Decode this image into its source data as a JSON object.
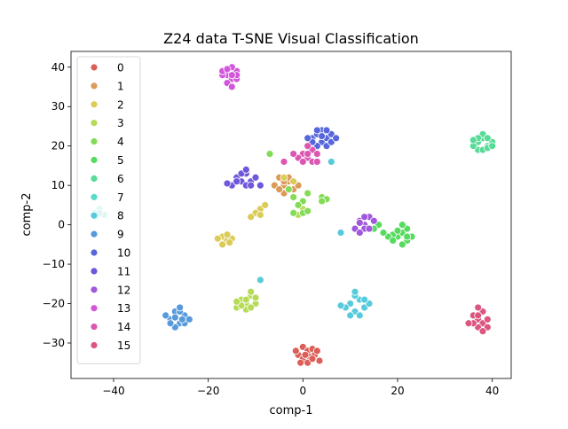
{
  "chart_data": {
    "type": "scatter",
    "title": "Z24 data T-SNE Visual Classification",
    "xlabel": "comp-1",
    "ylabel": "comp-2",
    "xlim": [
      -49,
      44
    ],
    "ylim": [
      -39,
      44
    ],
    "xticks": [
      -40,
      -20,
      0,
      20,
      40
    ],
    "yticks": [
      -30,
      -20,
      -10,
      0,
      10,
      20,
      30,
      40
    ],
    "grid": false,
    "legend_position": "upper-left",
    "series": [
      {
        "name": "0",
        "color": "#db5f57",
        "points": [
          [
            0,
            -31
          ],
          [
            1,
            -32
          ],
          [
            2,
            -31.5
          ],
          [
            -1,
            -33
          ],
          [
            0,
            -34
          ],
          [
            1.5,
            -33.5
          ],
          [
            -1.5,
            -32
          ],
          [
            2.5,
            -33
          ],
          [
            3,
            -32
          ],
          [
            -0.5,
            -35
          ],
          [
            1,
            -35
          ],
          [
            3.5,
            -34.5
          ],
          [
            0.5,
            -33
          ],
          [
            2,
            -34
          ]
        ]
      },
      {
        "name": "1",
        "color": "#db9a57",
        "points": [
          [
            -4,
            10
          ],
          [
            -5,
            12
          ],
          [
            -3,
            11
          ],
          [
            -2,
            9
          ],
          [
            -6,
            10
          ],
          [
            -4,
            8
          ],
          [
            -3,
            12
          ],
          [
            -1,
            10
          ],
          [
            -5,
            9
          ],
          [
            -2,
            11
          ],
          [
            -4,
            11
          ],
          [
            -3,
            9
          ]
        ]
      },
      {
        "name": "2",
        "color": "#dbcb57",
        "points": [
          [
            -17,
            -3
          ],
          [
            -16,
            -4
          ],
          [
            -15,
            -3.5
          ],
          [
            -17,
            -5
          ],
          [
            -16,
            -2.5
          ],
          [
            -15.5,
            -4.5
          ],
          [
            -18,
            -3.5
          ],
          [
            -9,
            4
          ],
          [
            -10,
            3
          ],
          [
            -11,
            2
          ],
          [
            -8,
            5
          ],
          [
            -9,
            2.5
          ],
          [
            -4,
            12
          ],
          [
            -2,
            11
          ]
        ]
      },
      {
        "name": "3",
        "color": "#b5db57",
        "points": [
          [
            -13,
            -19
          ],
          [
            -12,
            -20
          ],
          [
            -11,
            -18
          ],
          [
            -14,
            -21
          ],
          [
            -12,
            -21.5
          ],
          [
            -10,
            -20
          ],
          [
            -13,
            -20.5
          ],
          [
            -11,
            -17
          ],
          [
            -12,
            -19
          ],
          [
            -10,
            -18.5
          ],
          [
            -14,
            -19.5
          ],
          [
            -11,
            -21
          ],
          [
            -2,
            3
          ],
          [
            0,
            4
          ],
          [
            -1,
            2.5
          ]
        ]
      },
      {
        "name": "4",
        "color": "#84db57",
        "points": [
          [
            -2,
            7
          ],
          [
            0,
            6
          ],
          [
            -1,
            5
          ],
          [
            4,
            7
          ],
          [
            5,
            6.5
          ],
          [
            1,
            8
          ],
          [
            -3,
            9
          ],
          [
            0,
            3
          ],
          [
            -2,
            3
          ],
          [
            1,
            3.5
          ],
          [
            -7,
            18
          ],
          [
            4,
            6
          ]
        ]
      },
      {
        "name": "5",
        "color": "#57db5f",
        "points": [
          [
            20,
            -3
          ],
          [
            21,
            -2
          ],
          [
            22,
            -4
          ],
          [
            19,
            -2.5
          ],
          [
            18,
            -3
          ],
          [
            21,
            -5
          ],
          [
            23,
            -3
          ],
          [
            22,
            -1
          ],
          [
            20,
            -1.5
          ],
          [
            17,
            -2
          ],
          [
            21,
            0
          ],
          [
            22,
            -3
          ],
          [
            19,
            -4
          ],
          [
            16,
            0
          ],
          [
            15,
            -1
          ]
        ]
      },
      {
        "name": "6",
        "color": "#57db96",
        "points": [
          [
            37,
            21
          ],
          [
            38,
            22
          ],
          [
            39,
            20
          ],
          [
            37,
            19
          ],
          [
            40,
            21
          ],
          [
            38,
            23
          ],
          [
            36,
            20
          ],
          [
            39,
            22
          ],
          [
            38,
            19
          ],
          [
            37,
            22
          ],
          [
            39,
            19.5
          ],
          [
            40,
            20
          ],
          [
            36,
            21.5
          ]
        ]
      },
      {
        "name": "7",
        "color": "#57dbc7",
        "points": [
          [
            -44,
            3
          ],
          [
            -43,
            4
          ],
          [
            -42,
            2.5
          ],
          [
            -44,
            2
          ],
          [
            -43,
            3
          ]
        ]
      },
      {
        "name": "8",
        "color": "#57cbdb",
        "points": [
          [
            10,
            -20
          ],
          [
            11,
            -22
          ],
          [
            12,
            -19
          ],
          [
            13,
            -21
          ],
          [
            11,
            -18
          ],
          [
            10,
            -23
          ],
          [
            12,
            -23
          ],
          [
            14,
            -20
          ],
          [
            9,
            -21
          ],
          [
            13,
            -19
          ],
          [
            11,
            -17
          ],
          [
            8,
            -20.5
          ],
          [
            -9,
            -14
          ],
          [
            8,
            -2
          ],
          [
            6,
            16
          ]
        ]
      },
      {
        "name": "9",
        "color": "#579adb",
        "points": [
          [
            -28,
            -24
          ],
          [
            -27,
            -22
          ],
          [
            -26,
            -25
          ],
          [
            -25,
            -23
          ],
          [
            -29,
            -23
          ],
          [
            -27,
            -26
          ],
          [
            -25,
            -25
          ],
          [
            -26,
            -22
          ],
          [
            -28,
            -25
          ],
          [
            -24,
            -24
          ],
          [
            -27,
            -23.5
          ],
          [
            -26,
            -21
          ],
          [
            -25.5,
            -24
          ]
        ]
      },
      {
        "name": "10",
        "color": "#5767db",
        "points": [
          [
            2,
            22
          ],
          [
            3,
            23
          ],
          [
            4,
            21
          ],
          [
            5,
            22
          ],
          [
            3,
            20
          ],
          [
            6,
            23
          ],
          [
            4,
            24
          ],
          [
            2,
            21
          ],
          [
            5,
            20
          ],
          [
            6,
            21
          ],
          [
            7,
            22
          ],
          [
            3,
            24
          ],
          [
            1,
            22
          ],
          [
            4,
            22.5
          ],
          [
            5,
            24
          ]
        ]
      },
      {
        "name": "11",
        "color": "#7057db",
        "points": [
          [
            -14,
            12
          ],
          [
            -13,
            11
          ],
          [
            -12,
            13
          ],
          [
            -15,
            10
          ],
          [
            -11,
            11
          ],
          [
            -13,
            13
          ],
          [
            -12,
            10
          ],
          [
            -14,
            11
          ],
          [
            -10,
            12
          ],
          [
            -11,
            10
          ],
          [
            -16,
            10.5
          ],
          [
            -12,
            14
          ],
          [
            -9,
            10
          ]
        ]
      },
      {
        "name": "12",
        "color": "#a157db",
        "points": [
          [
            12,
            1
          ],
          [
            13,
            0
          ],
          [
            14,
            2
          ],
          [
            11,
            -1
          ],
          [
            13,
            -1
          ],
          [
            12,
            -2
          ],
          [
            14,
            -1
          ],
          [
            15,
            1
          ],
          [
            13,
            2
          ],
          [
            12,
            0.5
          ]
        ]
      },
      {
        "name": "13",
        "color": "#d257db",
        "points": [
          [
            -16,
            38
          ],
          [
            -15,
            37
          ],
          [
            -14,
            39
          ],
          [
            -17,
            38
          ],
          [
            -15,
            40
          ],
          [
            -16,
            36
          ],
          [
            -14,
            37
          ],
          [
            -15,
            35
          ],
          [
            -17,
            39
          ],
          [
            -14,
            38
          ],
          [
            -16,
            39.5
          ],
          [
            -15,
            38
          ]
        ]
      },
      {
        "name": "14",
        "color": "#db57b2",
        "points": [
          [
            0,
            18
          ],
          [
            1,
            17
          ],
          [
            2,
            19
          ],
          [
            -1,
            17
          ],
          [
            1,
            20
          ],
          [
            3,
            18
          ],
          [
            0,
            16
          ],
          [
            2,
            16
          ],
          [
            -2,
            18
          ],
          [
            -4,
            16
          ],
          [
            3,
            16
          ],
          [
            1,
            18
          ]
        ]
      },
      {
        "name": "15",
        "color": "#db5780",
        "points": [
          [
            37,
            -24
          ],
          [
            38,
            -25
          ],
          [
            36,
            -23
          ],
          [
            39,
            -24
          ],
          [
            37,
            -26
          ],
          [
            38,
            -22
          ],
          [
            36,
            -25
          ],
          [
            39,
            -26
          ],
          [
            37,
            -23
          ],
          [
            38,
            -27
          ],
          [
            35,
            -25
          ],
          [
            37,
            -21
          ]
        ]
      }
    ]
  }
}
